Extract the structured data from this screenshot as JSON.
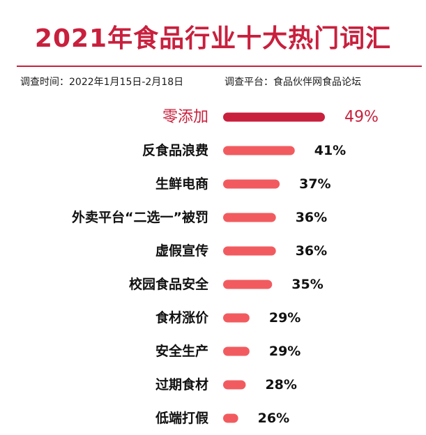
{
  "title": "2021年食品行业十大热门词汇",
  "survey_period": "调查时间：2022年1月15日-2月18日",
  "survey_platform": "调查平台：食品伙伴网食品论坛",
  "colors": {
    "accent": "#c8203d",
    "bar": "#f15b5f",
    "text": "#111111"
  },
  "chart_data": {
    "type": "bar",
    "orientation": "horizontal",
    "categories": [
      "零添加",
      "反食品浪费",
      "生鲜电商",
      "外卖平台“二选一”被罚",
      "虚假宣传",
      "校园食品安全",
      "食材涨价",
      "安全生产",
      "过期食材",
      "低端打假"
    ],
    "values": [
      49,
      41,
      37,
      36,
      36,
      35,
      29,
      29,
      28,
      26
    ],
    "value_labels": [
      "49%",
      "41%",
      "37%",
      "36%",
      "36%",
      "35%",
      "29%",
      "29%",
      "28%",
      "26%"
    ],
    "unit": "%",
    "highlight_index": 0,
    "grid": false,
    "legend": "none"
  }
}
